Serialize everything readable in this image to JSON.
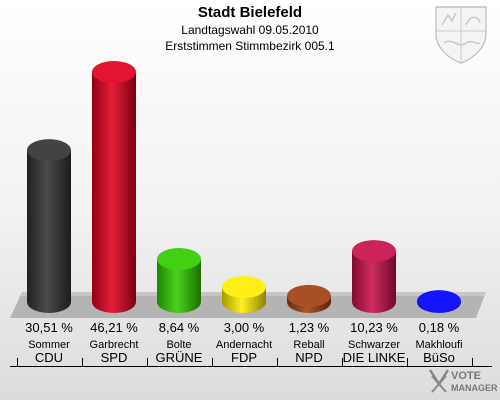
{
  "chart_data": {
    "type": "bar",
    "title": "Stadt Bielefeld",
    "subtitle_lines": [
      "Landtagswahl 09.05.2010",
      "Erststimmen Stimmbezirk 005.1"
    ],
    "unit": "%",
    "ylim": [
      0,
      50
    ],
    "categories": [
      "CDU",
      "SPD",
      "GRÜNE",
      "FDP",
      "NPD",
      "DIE LINKE",
      "BüSo"
    ],
    "candidates": [
      "Sommer",
      "Garbrecht",
      "Bolte",
      "Andernacht",
      "Reball",
      "Schwarzer",
      "Makhloufi"
    ],
    "values": [
      30.51,
      46.21,
      8.64,
      3.0,
      1.23,
      10.23,
      0.18
    ],
    "value_labels": [
      "30,51 %",
      "46,21 %",
      "8,64 %",
      "3,00 %",
      "1,23 %",
      "10,23 %",
      "0,18 %"
    ],
    "colors": [
      "#333333",
      "#e00020",
      "#33cc00",
      "#ffee00",
      "#a04010",
      "#c8104a",
      "#0000ff"
    ]
  },
  "branding": {
    "line1": "VOTE",
    "line2": "MANAGER"
  }
}
